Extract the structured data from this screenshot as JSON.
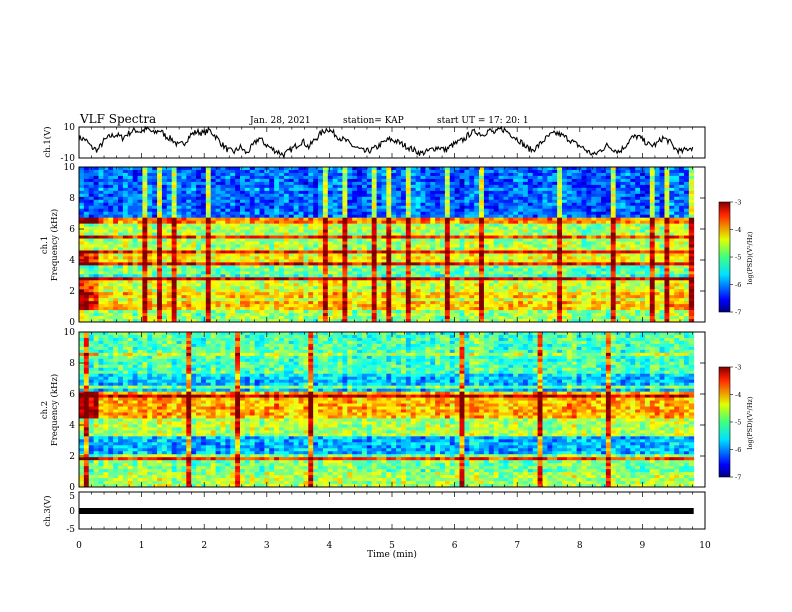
{
  "header": {
    "title": "VLF Spectra",
    "date": "Jan. 28, 2021",
    "station": "station= KAP",
    "start": "start  UT =   17: 20: 1"
  },
  "chart_data": [
    {
      "type": "line",
      "panel": "ch1",
      "ylabel": "ch.1(V)",
      "ylim": [
        -10,
        10
      ],
      "yticks": [
        "10",
        "-10"
      ],
      "xlim": [
        0,
        10
      ],
      "approx_values": [
        3,
        2,
        -3,
        -5,
        1,
        4,
        5,
        3,
        6,
        8,
        7,
        9,
        6,
        8,
        4,
        2,
        -2,
        0,
        5,
        7,
        6,
        8,
        4,
        -1,
        -5,
        -6,
        -3,
        -7,
        -2,
        3,
        -1,
        -4,
        -6,
        -8,
        -5,
        -2,
        1,
        -3,
        2,
        6,
        9,
        6,
        3,
        1,
        -2,
        -4,
        -6,
        -5,
        -3,
        0,
        2,
        1,
        -1,
        -3,
        -5,
        -7,
        -6,
        -4,
        -3,
        -5,
        -2,
        0,
        2,
        6,
        7,
        5,
        8,
        6,
        9,
        7,
        4,
        1,
        -3,
        -5,
        -2,
        2,
        5,
        6,
        4,
        2,
        -1,
        -3,
        -6,
        -8,
        -5,
        -2,
        -4,
        -6,
        -2,
        3,
        4,
        1,
        -2,
        -1,
        3,
        1,
        -4,
        -6,
        -4,
        -3
      ]
    },
    {
      "type": "heatmap",
      "panel": "ch1",
      "ylabel_line1": "ch.1",
      "ylabel_line2": "Frequency (kHz)",
      "ylim": [
        0,
        10
      ],
      "yticks": [
        "0",
        "2",
        "4",
        "6",
        "8",
        "10"
      ],
      "xlim": [
        0,
        10
      ],
      "colorbar_label": "log(PSD)(V²/Hz)",
      "colorbar_range": [
        -7,
        -3
      ],
      "colorbar_ticks": [
        "-3",
        "-4",
        "-5",
        "-6",
        "-7"
      ]
    },
    {
      "type": "heatmap",
      "panel": "ch2",
      "ylabel_line1": "ch.2",
      "ylabel_line2": "Frequency (kHz)",
      "ylim": [
        0,
        10
      ],
      "yticks": [
        "0",
        "2",
        "4",
        "6",
        "8",
        "10"
      ],
      "xlim": [
        0,
        10
      ],
      "colorbar_label": "log(PSD)(V²/Hz)",
      "colorbar_range": [
        -7,
        -3
      ],
      "colorbar_ticks": [
        "-3",
        "-4",
        "-5",
        "-6",
        "-7"
      ]
    },
    {
      "type": "line",
      "panel": "ch3",
      "ylabel": "ch.3(V)",
      "ylim": [
        -5,
        5
      ],
      "yticks": [
        "5",
        "0",
        "-5"
      ],
      "constant_value": -0.5,
      "xlim": [
        0,
        10
      ],
      "xlabel": "Time (min)",
      "xticks": [
        "0",
        "1",
        "2",
        "3",
        "4",
        "5",
        "6",
        "7",
        "8",
        "9",
        "10"
      ]
    }
  ]
}
